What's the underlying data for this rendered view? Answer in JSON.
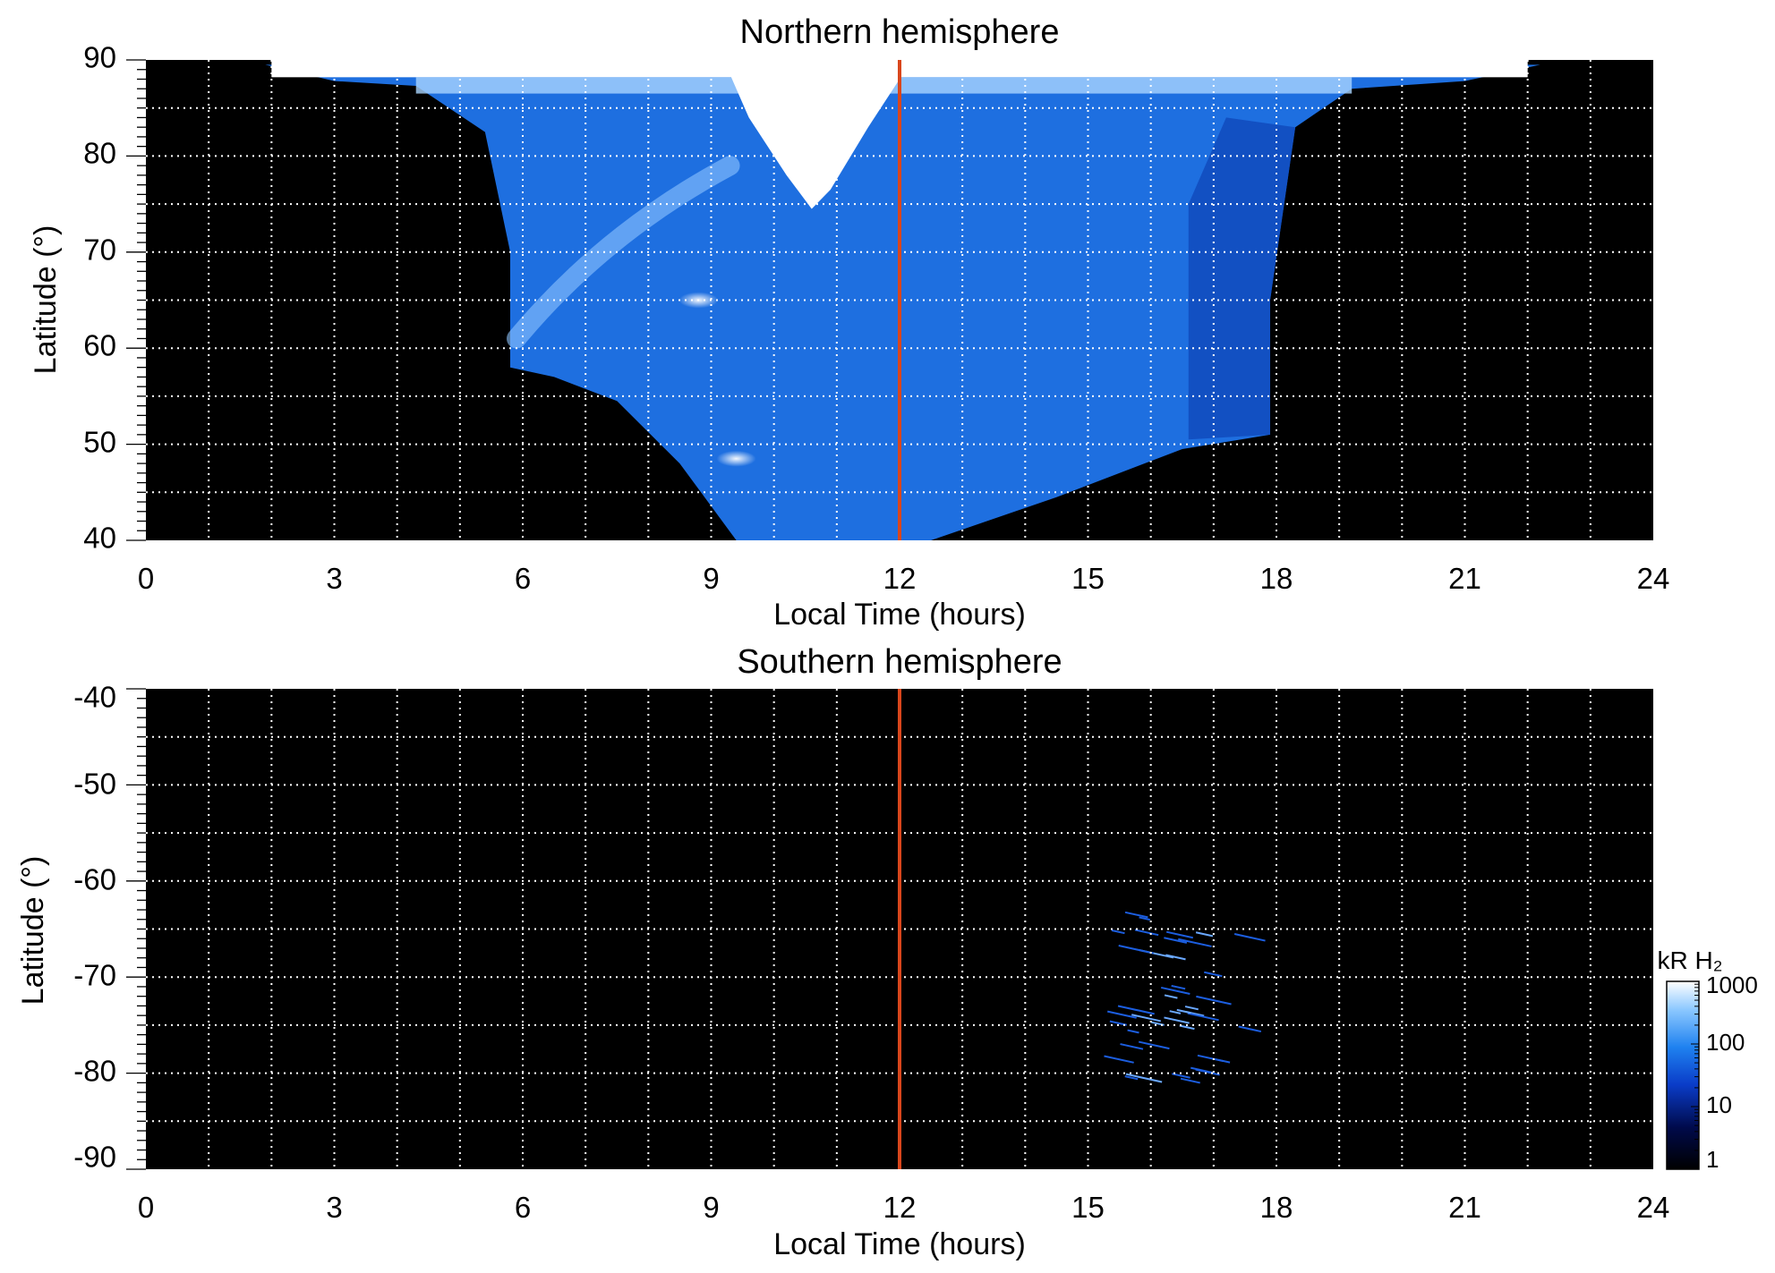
{
  "chart_data": [
    {
      "type": "heatmap",
      "title": "Northern hemisphere",
      "xlabel": "Local Time (hours)",
      "ylabel": "Latitude (°)",
      "xlim": [
        0,
        24
      ],
      "ylim": [
        40,
        90
      ],
      "x_ticks": [
        "0",
        "3",
        "6",
        "9",
        "12",
        "15",
        "18",
        "21",
        "24"
      ],
      "y_ticks": [
        "40",
        "50",
        "60",
        "70",
        "80",
        "90"
      ],
      "grid": true,
      "noon_line": {
        "x": 12,
        "color": "#d9461c"
      },
      "region": {
        "lat_max": 90,
        "boundary": [
          [
            1.9,
            89.5
          ],
          [
            3,
            87.8
          ],
          [
            4.3,
            87.3
          ],
          [
            5.4,
            82.5
          ],
          [
            5.8,
            70
          ],
          [
            5.8,
            58
          ],
          [
            6.5,
            57
          ],
          [
            7.5,
            54.5
          ],
          [
            8.5,
            48
          ],
          [
            9.4,
            40
          ],
          [
            12.5,
            40
          ],
          [
            14.5,
            44.5
          ],
          [
            16.5,
            49.5
          ],
          [
            17.9,
            51
          ],
          [
            17.9,
            65
          ],
          [
            18.3,
            83
          ],
          [
            19.2,
            87
          ],
          [
            21,
            87.8
          ],
          [
            22.2,
            89.5
          ]
        ]
      },
      "features": [
        {
          "lt": 10.6,
          "lat_range": [
            74,
            90
          ],
          "intensity": "saturated"
        },
        {
          "lt": 8.8,
          "lat": 65,
          "intensity": "bright"
        },
        {
          "lt": 9.4,
          "lat": 48.5,
          "intensity": "bright"
        }
      ]
    },
    {
      "type": "heatmap",
      "title": "Southern hemisphere",
      "xlabel": "Local Time (hours)",
      "ylabel": "Latitude (°)",
      "xlim": [
        0,
        24
      ],
      "ylim": [
        -90,
        -40
      ],
      "x_ticks": [
        "0",
        "3",
        "6",
        "9",
        "12",
        "15",
        "18",
        "21",
        "24"
      ],
      "y_ticks": [
        "-40",
        "-50",
        "-60",
        "-70",
        "-80",
        "-90"
      ],
      "grid": true,
      "noon_line": {
        "x": 12,
        "color": "#d9461c"
      },
      "region": {
        "lt_range": [
          15.2,
          17.5
        ],
        "lat_range": [
          -81,
          -63
        ],
        "intensity": "sparse"
      }
    }
  ],
  "colorbar": {
    "label": "kR H₂",
    "scale": "log",
    "range": [
      1,
      1000
    ],
    "ticks": [
      "1",
      "10",
      "100",
      "1000"
    ],
    "colors": [
      "#000000",
      "#000a4a",
      "#0a3cc8",
      "#1f82f0",
      "#8cc8ff",
      "#ffffff"
    ]
  }
}
